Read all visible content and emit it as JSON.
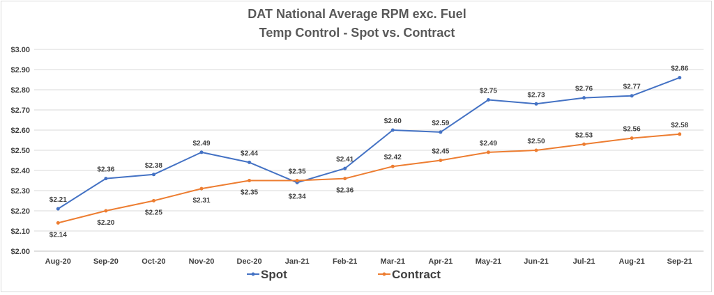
{
  "chart_data": {
    "type": "line",
    "title": "DAT National Average RPM exc. Fuel",
    "subtitle": "Temp Control - Spot vs. Contract",
    "categories": [
      "Aug-20",
      "Sep-20",
      "Oct-20",
      "Nov-20",
      "Dec-20",
      "Jan-21",
      "Feb-21",
      "Mar-21",
      "Apr-21",
      "May-21",
      "Jun-21",
      "Jul-21",
      "Aug-21",
      "Sep-21"
    ],
    "series": [
      {
        "name": "Spot",
        "color": "#4472c4",
        "values": [
          2.21,
          2.36,
          2.38,
          2.49,
          2.44,
          2.34,
          2.41,
          2.6,
          2.59,
          2.75,
          2.73,
          2.76,
          2.77,
          2.86
        ],
        "labels": [
          "$2.21",
          "$2.36",
          "$2.38",
          "$2.49",
          "$2.44",
          "$2.34",
          "$2.41",
          "$2.60",
          "$2.59",
          "$2.75",
          "$2.73",
          "$2.76",
          "$2.77",
          "$2.86"
        ]
      },
      {
        "name": "Contract",
        "color": "#ed7d31",
        "values": [
          2.14,
          2.2,
          2.25,
          2.31,
          2.35,
          2.35,
          2.36,
          2.42,
          2.45,
          2.49,
          2.5,
          2.53,
          2.56,
          2.58
        ],
        "labels": [
          "$2.14",
          "$2.20",
          "$2.25",
          "$2.31",
          "$2.35",
          "$2.35",
          "$2.36",
          "$2.42",
          "$2.45",
          "$2.49",
          "$2.50",
          "$2.53",
          "$2.56",
          "$2.58"
        ]
      }
    ],
    "ylim": [
      2.0,
      3.0
    ],
    "yticks": [
      "$2.00",
      "$2.10",
      "$2.20",
      "$2.30",
      "$2.40",
      "$2.50",
      "$2.60",
      "$2.70",
      "$2.80",
      "$2.90",
      "$3.00"
    ],
    "grid": true,
    "legend": "bottom"
  }
}
